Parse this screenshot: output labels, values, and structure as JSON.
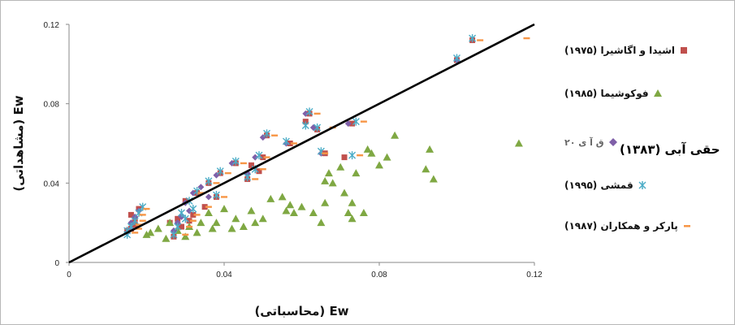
{
  "chart_data": {
    "type": "scatter",
    "xlabel": "Ew (محاسباتی)",
    "ylabel": "Ew (مشاهداتی)",
    "xlim": [
      0,
      0.12
    ],
    "ylim": [
      0,
      0.12
    ],
    "x_ticks": [
      "0",
      "0.04",
      "0.08",
      "0.12"
    ],
    "y_ticks": [
      "0",
      "0.04",
      "0.08",
      "0.12"
    ],
    "grid": false,
    "legend_position": "right",
    "reference_line": {
      "x": [
        0,
        0.12
      ],
      "y": [
        0,
        0.12
      ]
    },
    "series": [
      {
        "name": "اشیدا و اگاشیرا (۱۹۷۵)",
        "marker": "square",
        "color": "#c0504d",
        "points": [
          [
            0.104,
            0.112
          ],
          [
            0.1,
            0.102
          ],
          [
            0.073,
            0.07
          ],
          [
            0.071,
            0.053
          ],
          [
            0.066,
            0.055
          ],
          [
            0.064,
            0.067
          ],
          [
            0.062,
            0.075
          ],
          [
            0.061,
            0.071
          ],
          [
            0.057,
            0.06
          ],
          [
            0.051,
            0.064
          ],
          [
            0.05,
            0.053
          ],
          [
            0.049,
            0.046
          ],
          [
            0.047,
            0.049
          ],
          [
            0.046,
            0.042
          ],
          [
            0.043,
            0.05
          ],
          [
            0.039,
            0.045
          ],
          [
            0.038,
            0.033
          ],
          [
            0.036,
            0.04
          ],
          [
            0.035,
            0.028
          ],
          [
            0.033,
            0.035
          ],
          [
            0.032,
            0.024
          ],
          [
            0.031,
            0.021
          ],
          [
            0.03,
            0.031
          ],
          [
            0.029,
            0.018
          ],
          [
            0.028,
            0.022
          ],
          [
            0.027,
            0.013
          ],
          [
            0.026,
            0.02
          ],
          [
            0.018,
            0.027
          ],
          [
            0.017,
            0.022
          ],
          [
            0.017,
            0.019
          ],
          [
            0.016,
            0.017
          ],
          [
            0.016,
            0.024
          ],
          [
            0.015,
            0.016
          ]
        ]
      },
      {
        "name": "فوکوشیما (۱۹۸۵)",
        "marker": "triangle",
        "color": "#7fa843",
        "points": [
          [
            0.116,
            0.06
          ],
          [
            0.094,
            0.042
          ],
          [
            0.092,
            0.047
          ],
          [
            0.093,
            0.057
          ],
          [
            0.084,
            0.064
          ],
          [
            0.082,
            0.053
          ],
          [
            0.08,
            0.049
          ],
          [
            0.078,
            0.055
          ],
          [
            0.077,
            0.057
          ],
          [
            0.076,
            0.025
          ],
          [
            0.074,
            0.045
          ],
          [
            0.073,
            0.03
          ],
          [
            0.073,
            0.022
          ],
          [
            0.072,
            0.025
          ],
          [
            0.071,
            0.035
          ],
          [
            0.07,
            0.048
          ],
          [
            0.068,
            0.04
          ],
          [
            0.067,
            0.045
          ],
          [
            0.066,
            0.041
          ],
          [
            0.066,
            0.03
          ],
          [
            0.065,
            0.02
          ],
          [
            0.063,
            0.025
          ],
          [
            0.06,
            0.028
          ],
          [
            0.058,
            0.025
          ],
          [
            0.057,
            0.029
          ],
          [
            0.056,
            0.026
          ],
          [
            0.055,
            0.033
          ],
          [
            0.052,
            0.032
          ],
          [
            0.05,
            0.022
          ],
          [
            0.048,
            0.02
          ],
          [
            0.047,
            0.026
          ],
          [
            0.045,
            0.018
          ],
          [
            0.043,
            0.022
          ],
          [
            0.042,
            0.017
          ],
          [
            0.04,
            0.027
          ],
          [
            0.038,
            0.02
          ],
          [
            0.037,
            0.017
          ],
          [
            0.036,
            0.025
          ],
          [
            0.034,
            0.02
          ],
          [
            0.033,
            0.015
          ],
          [
            0.031,
            0.018
          ],
          [
            0.03,
            0.013
          ],
          [
            0.028,
            0.016
          ],
          [
            0.026,
            0.02
          ],
          [
            0.025,
            0.012
          ],
          [
            0.023,
            0.017
          ],
          [
            0.021,
            0.015
          ],
          [
            0.02,
            0.014
          ]
        ]
      },
      {
        "name": "حقی آبی (۱۳۸۳)",
        "marker": "diamond",
        "color": "#7f5fa8",
        "points": [
          [
            0.1,
            0.102
          ],
          [
            0.072,
            0.07
          ],
          [
            0.065,
            0.055
          ],
          [
            0.063,
            0.068
          ],
          [
            0.061,
            0.075
          ],
          [
            0.056,
            0.06
          ],
          [
            0.05,
            0.063
          ],
          [
            0.048,
            0.053
          ],
          [
            0.046,
            0.045
          ],
          [
            0.042,
            0.05
          ],
          [
            0.038,
            0.044
          ],
          [
            0.036,
            0.033
          ],
          [
            0.034,
            0.038
          ],
          [
            0.032,
            0.035
          ],
          [
            0.031,
            0.026
          ],
          [
            0.03,
            0.03
          ],
          [
            0.029,
            0.023
          ],
          [
            0.028,
            0.02
          ],
          [
            0.027,
            0.016
          ],
          [
            0.018,
            0.026
          ],
          [
            0.017,
            0.023
          ],
          [
            0.016,
            0.02
          ],
          [
            0.016,
            0.017
          ],
          [
            0.015,
            0.015
          ]
        ]
      },
      {
        "name": "قمشی (۱۹۹۵)",
        "marker": "star",
        "color": "#4bacc6",
        "points": [
          [
            0.104,
            0.113
          ],
          [
            0.1,
            0.103
          ],
          [
            0.074,
            0.071
          ],
          [
            0.073,
            0.054
          ],
          [
            0.065,
            0.056
          ],
          [
            0.064,
            0.068
          ],
          [
            0.062,
            0.076
          ],
          [
            0.061,
            0.069
          ],
          [
            0.056,
            0.061
          ],
          [
            0.051,
            0.065
          ],
          [
            0.049,
            0.054
          ],
          [
            0.048,
            0.047
          ],
          [
            0.046,
            0.043
          ],
          [
            0.043,
            0.051
          ],
          [
            0.039,
            0.046
          ],
          [
            0.038,
            0.034
          ],
          [
            0.036,
            0.041
          ],
          [
            0.033,
            0.036
          ],
          [
            0.032,
            0.027
          ],
          [
            0.031,
            0.031
          ],
          [
            0.03,
            0.022
          ],
          [
            0.029,
            0.025
          ],
          [
            0.028,
            0.018
          ],
          [
            0.027,
            0.014
          ],
          [
            0.019,
            0.028
          ],
          [
            0.018,
            0.025
          ],
          [
            0.017,
            0.021
          ],
          [
            0.016,
            0.018
          ],
          [
            0.015,
            0.016
          ],
          [
            0.015,
            0.014
          ]
        ]
      },
      {
        "name": "پارکر و همکاران (۱۹۸۷)",
        "marker": "dash",
        "color": "#f79646",
        "points": [
          [
            0.118,
            0.113
          ],
          [
            0.106,
            0.112
          ],
          [
            0.076,
            0.071
          ],
          [
            0.075,
            0.054
          ],
          [
            0.068,
            0.068
          ],
          [
            0.066,
            0.055
          ],
          [
            0.064,
            0.075
          ],
          [
            0.058,
            0.06
          ],
          [
            0.053,
            0.064
          ],
          [
            0.051,
            0.053
          ],
          [
            0.05,
            0.047
          ],
          [
            0.048,
            0.042
          ],
          [
            0.045,
            0.05
          ],
          [
            0.041,
            0.045
          ],
          [
            0.04,
            0.033
          ],
          [
            0.038,
            0.04
          ],
          [
            0.036,
            0.028
          ],
          [
            0.034,
            0.035
          ],
          [
            0.033,
            0.024
          ],
          [
            0.032,
            0.021
          ],
          [
            0.031,
            0.018
          ],
          [
            0.03,
            0.014
          ],
          [
            0.02,
            0.027
          ],
          [
            0.019,
            0.024
          ],
          [
            0.019,
            0.021
          ],
          [
            0.018,
            0.019
          ],
          [
            0.018,
            0.017
          ],
          [
            0.017,
            0.015
          ]
        ]
      }
    ]
  }
}
